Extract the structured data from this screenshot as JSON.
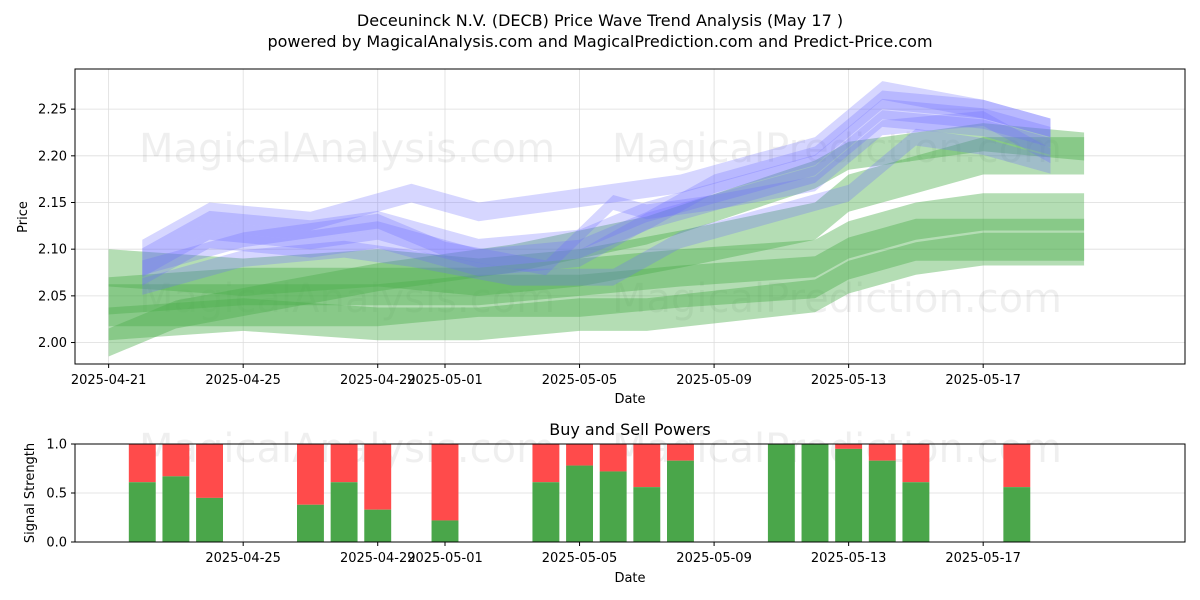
{
  "header": {
    "title": "Deceuninck N.V. (DECB) Price Wave Trend Analysis (May 17 )",
    "subtitle": "powered by MagicalAnalysis.com and MagicalPrediction.com and Predict-Price.com"
  },
  "watermarks": [
    "MagicalAnalysis.com",
    "MagicalPrediction.com"
  ],
  "colors": {
    "buy": "#4aa64a",
    "sell": "#ff4b4b",
    "blue_band": "#6b6bff",
    "green_band": "#4caf4c",
    "grid": "#dddddd"
  },
  "chart_data": [
    {
      "type": "area",
      "title": "",
      "xlabel": "Date",
      "ylabel": "Price",
      "x_ticks": [
        "2025-04-21",
        "2025-04-25",
        "2025-04-29",
        "2025-05-01",
        "2025-05-05",
        "2025-05-09",
        "2025-05-13",
        "2025-05-17"
      ],
      "y_ticks": [
        "2.00",
        "2.05",
        "2.10",
        "2.15",
        "2.20",
        "2.25"
      ],
      "xlim": [
        "2025-04-20",
        "2025-05-23"
      ],
      "ylim": [
        1.977,
        2.293
      ],
      "grid": true,
      "series_blue": [
        {
          "x": [
            "2025-04-22",
            "2025-04-24",
            "2025-04-27",
            "2025-04-29",
            "2025-05-02",
            "2025-05-05",
            "2025-05-07",
            "2025-05-09",
            "2025-05-12",
            "2025-05-14",
            "2025-05-17",
            "2025-05-19"
          ],
          "y": [
            2.07,
            2.11,
            2.1,
            2.11,
            2.08,
            2.09,
            2.13,
            2.15,
            2.18,
            2.24,
            2.23,
            2.21
          ],
          "width": 0.018
        },
        {
          "x": [
            "2025-04-22",
            "2025-04-24",
            "2025-04-27",
            "2025-04-29",
            "2025-05-02",
            "2025-05-05",
            "2025-05-07",
            "2025-05-09",
            "2025-05-12",
            "2025-05-14",
            "2025-05-17",
            "2025-05-19"
          ],
          "y": [
            2.09,
            2.13,
            2.12,
            2.13,
            2.1,
            2.11,
            2.14,
            2.16,
            2.19,
            2.25,
            2.24,
            2.22
          ],
          "width": 0.022
        },
        {
          "x": [
            "2025-04-22",
            "2025-04-24",
            "2025-04-27",
            "2025-04-29",
            "2025-05-02",
            "2025-05-05",
            "2025-05-07",
            "2025-05-09",
            "2025-05-12",
            "2025-05-14",
            "2025-05-17",
            "2025-05-19"
          ],
          "y": [
            2.08,
            2.12,
            2.11,
            2.12,
            2.09,
            2.1,
            2.13,
            2.17,
            2.2,
            2.26,
            2.25,
            2.23
          ],
          "width": 0.02
        },
        {
          "x": [
            "2025-04-22",
            "2025-04-24",
            "2025-04-27",
            "2025-04-30",
            "2025-05-02",
            "2025-05-06",
            "2025-05-08",
            "2025-05-10",
            "2025-05-12",
            "2025-05-14",
            "2025-05-17",
            "2025-05-19"
          ],
          "y": [
            2.1,
            2.14,
            2.13,
            2.16,
            2.14,
            2.16,
            2.17,
            2.19,
            2.21,
            2.27,
            2.25,
            2.23
          ],
          "width": 0.02
        },
        {
          "x": [
            "2025-04-22",
            "2025-04-25",
            "2025-04-28",
            "2025-04-30",
            "2025-05-03",
            "2025-05-06",
            "2025-05-08",
            "2025-05-10",
            "2025-05-13",
            "2025-05-15",
            "2025-05-17",
            "2025-05-19"
          ],
          "y": [
            2.06,
            2.09,
            2.1,
            2.09,
            2.07,
            2.07,
            2.11,
            2.13,
            2.16,
            2.22,
            2.21,
            2.19
          ],
          "width": 0.018
        },
        {
          "x": [
            "2025-04-22",
            "2025-04-25",
            "2025-04-29",
            "2025-05-01",
            "2025-05-04",
            "2025-05-06",
            "2025-05-07",
            "2025-05-09",
            "2025-05-12",
            "2025-05-14",
            "2025-05-17",
            "2025-05-19"
          ],
          "y": [
            2.08,
            2.11,
            2.13,
            2.1,
            2.08,
            2.15,
            2.14,
            2.15,
            2.17,
            2.23,
            2.24,
            2.2
          ],
          "width": 0.016
        }
      ],
      "series_green": [
        {
          "x": [
            "2025-04-21",
            "2025-04-25",
            "2025-04-29",
            "2025-05-02",
            "2025-05-05",
            "2025-05-08",
            "2025-05-12",
            "2025-05-13",
            "2025-05-15",
            "2025-05-17",
            "2025-05-20"
          ],
          "y": [
            2.08,
            2.07,
            2.08,
            2.07,
            2.08,
            2.1,
            2.13,
            2.16,
            2.18,
            2.2,
            2.2
          ],
          "width": 0.04
        },
        {
          "x": [
            "2025-04-21",
            "2025-04-25",
            "2025-04-29",
            "2025-05-02",
            "2025-05-05",
            "2025-05-08",
            "2025-05-12",
            "2025-05-13",
            "2025-05-15",
            "2025-05-17",
            "2025-05-20"
          ],
          "y": [
            2.05,
            2.06,
            2.06,
            2.06,
            2.07,
            2.08,
            2.09,
            2.11,
            2.13,
            2.14,
            2.14
          ],
          "width": 0.04
        },
        {
          "x": [
            "2025-04-21",
            "2025-04-25",
            "2025-04-29",
            "2025-05-02",
            "2025-05-05",
            "2025-05-08",
            "2025-05-12",
            "2025-05-13",
            "2025-05-15",
            "2025-05-17",
            "2025-05-20"
          ],
          "y": [
            2.04,
            2.04,
            2.04,
            2.05,
            2.05,
            2.06,
            2.07,
            2.09,
            2.11,
            2.11,
            2.11
          ],
          "width": 0.045
        },
        {
          "x": [
            "2025-04-21",
            "2025-04-25",
            "2025-04-29",
            "2025-05-02",
            "2025-05-05",
            "2025-05-07",
            "2025-05-12",
            "2025-05-13",
            "2025-05-15",
            "2025-05-17",
            "2025-05-20"
          ],
          "y": [
            2.02,
            2.03,
            2.02,
            2.02,
            2.03,
            2.03,
            2.05,
            2.07,
            2.09,
            2.1,
            2.1
          ],
          "width": 0.035
        },
        {
          "x": [
            "2025-04-21",
            "2025-04-23",
            "2025-04-26",
            "2025-04-29",
            "2025-05-03",
            "2025-05-07",
            "2025-05-12",
            "2025-05-13",
            "2025-05-15",
            "2025-05-17",
            "2025-05-20"
          ],
          "y": [
            2.0,
            2.03,
            2.05,
            2.07,
            2.09,
            2.12,
            2.18,
            2.2,
            2.21,
            2.22,
            2.21
          ],
          "width": 0.03
        }
      ]
    },
    {
      "type": "bar",
      "title": "Buy and Sell Powers",
      "xlabel": "Date",
      "ylabel": "Signal Strength",
      "x_ticks": [
        "2025-04-25",
        "2025-04-29",
        "2025-05-01",
        "2025-05-05",
        "2025-05-09",
        "2025-05-13",
        "2025-05-17"
      ],
      "y_ticks": [
        "0.0",
        "0.5",
        "1.0"
      ],
      "xlim": [
        "2025-04-20",
        "2025-05-23"
      ],
      "ylim": [
        0,
        1
      ],
      "grid": true,
      "bars": [
        {
          "date": "2025-04-22",
          "buy": 0.61
        },
        {
          "date": "2025-04-23",
          "buy": 0.67
        },
        {
          "date": "2025-04-24",
          "buy": 0.45
        },
        {
          "date": "2025-04-27",
          "buy": 0.38
        },
        {
          "date": "2025-04-28",
          "buy": 0.61
        },
        {
          "date": "2025-04-29",
          "buy": 0.33
        },
        {
          "date": "2025-05-01",
          "buy": 0.22
        },
        {
          "date": "2025-05-04",
          "buy": 0.61
        },
        {
          "date": "2025-05-05",
          "buy": 0.78
        },
        {
          "date": "2025-05-06",
          "buy": 0.72
        },
        {
          "date": "2025-05-07",
          "buy": 0.56
        },
        {
          "date": "2025-05-08",
          "buy": 0.83
        },
        {
          "date": "2025-05-11",
          "buy": 1.0
        },
        {
          "date": "2025-05-12",
          "buy": 1.0
        },
        {
          "date": "2025-05-13",
          "buy": 0.95
        },
        {
          "date": "2025-05-14",
          "buy": 0.83
        },
        {
          "date": "2025-05-15",
          "buy": 0.61
        },
        {
          "date": "2025-05-18",
          "buy": 0.56
        }
      ]
    }
  ]
}
